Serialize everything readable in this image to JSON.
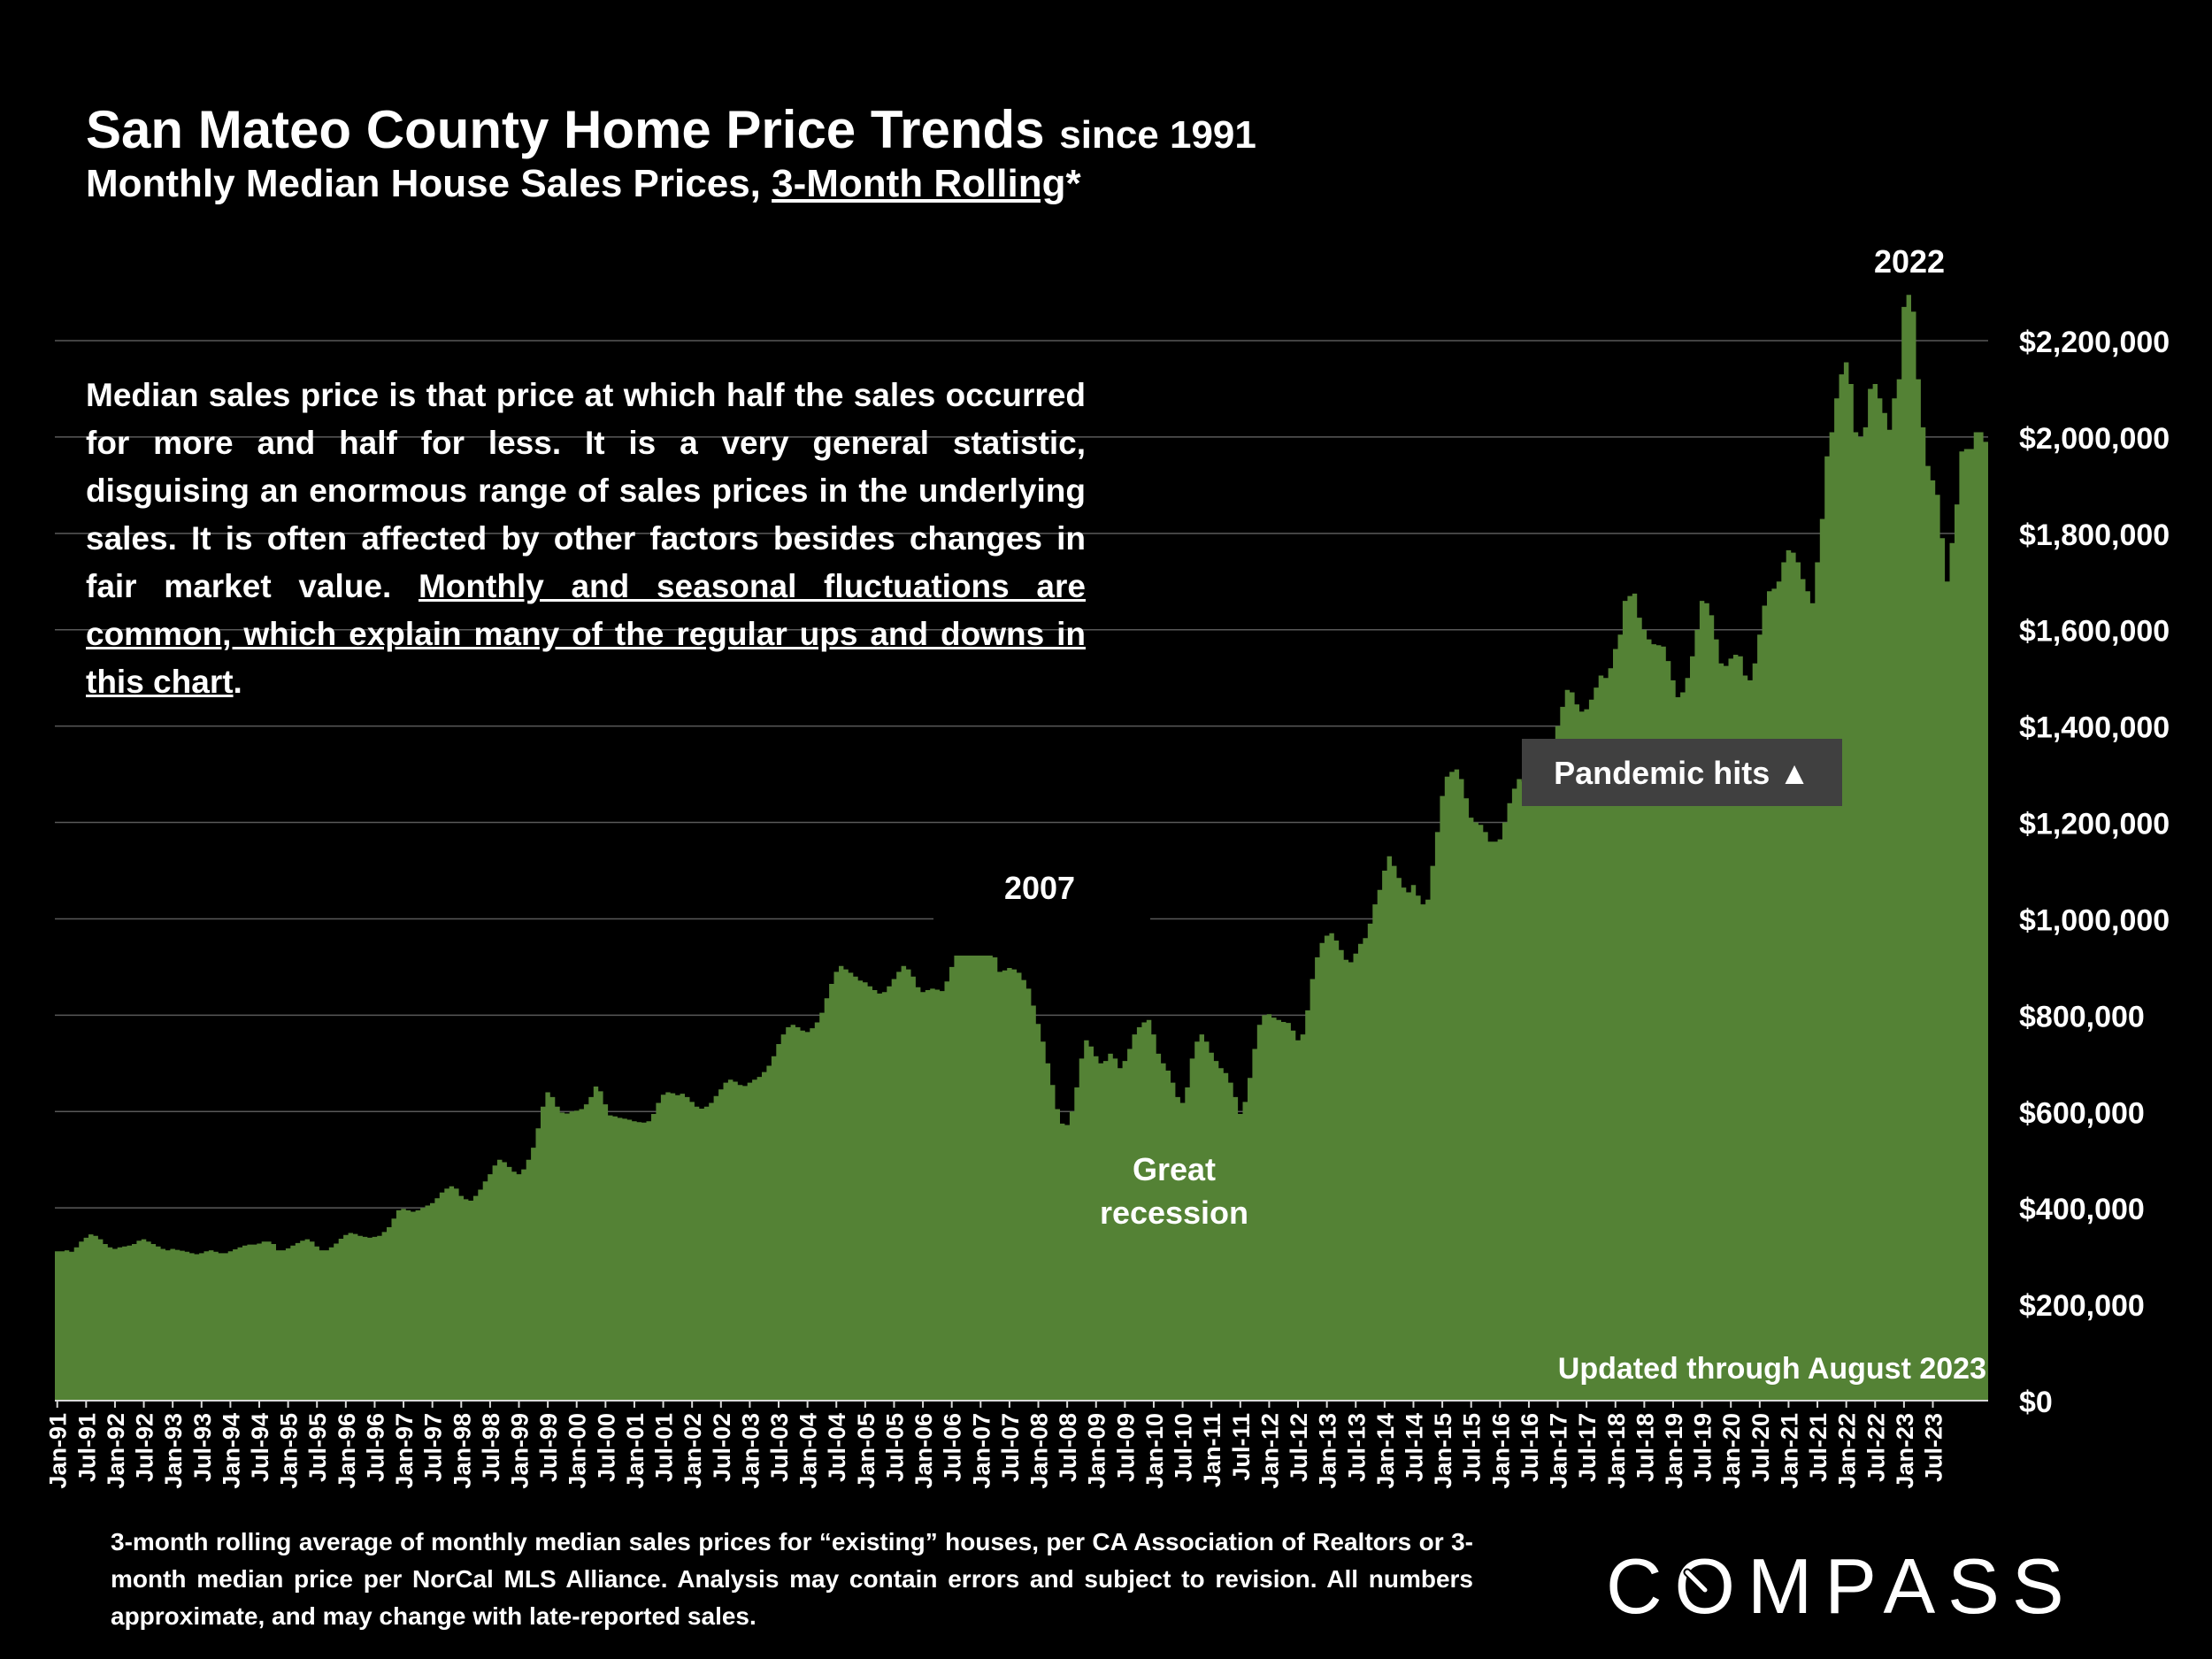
{
  "header": {
    "title": "San Mateo County Home Price Trends",
    "title_suffix": "since 1991",
    "subtitle_prefix": "Monthly Median House Sales Prices, ",
    "subtitle_link": "3-Month Rolling",
    "subtitle_suffix": "*"
  },
  "note": {
    "text_plain": "Median sales price is that price at which half the sales occurred for more and half for less. It is a very general statistic, disguising an enormous range of sales prices in the underlying sales. It is often affected by other factors besides changes in fair market value. ",
    "text_underlined": "Monthly and seasonal fluctuations are common, which explain many of the regular ups and downs in this chart",
    "text_end": "."
  },
  "footnote": "3-month rolling average of monthly median sales prices for “existing” houses, per CA Association of Realtors or 3-month median price per NorCal MLS Alliance. Analysis may contain errors and subject to revision. All numbers approximate, and may change with late-reported sales.",
  "logo": {
    "text": "COMPASS"
  },
  "colors": {
    "area": "#548235",
    "background": "#000000",
    "grid": "#595959",
    "callout_box": "#404040"
  },
  "chart_data": {
    "type": "area",
    "x_start": "Jan-91",
    "x_end": "Aug-23",
    "x_ticks": [
      "Jan-91",
      "Jul-91",
      "Jan-92",
      "Jul-92",
      "Jan-93",
      "Jul-93",
      "Jan-94",
      "Jul-94",
      "Jan-95",
      "Jul-95",
      "Jan-96",
      "Jul-96",
      "Jan-97",
      "Jul-97",
      "Jan-98",
      "Jul-98",
      "Jan-99",
      "Jul-99",
      "Jan-00",
      "Jul-00",
      "Jan-01",
      "Jul-01",
      "Jan-02",
      "Jul-02",
      "Jan-03",
      "Jul-03",
      "Jan-04",
      "Jul-04",
      "Jan-05",
      "Jul-05",
      "Jan-06",
      "Jul-06",
      "Jan-07",
      "Jul-07",
      "Jan-08",
      "Jul-08",
      "Jan-09",
      "Jul-09",
      "Jan-10",
      "Jul-10",
      "Jan-11",
      "Jul-11",
      "Jan-12",
      "Jul-12",
      "Jan-13",
      "Jul-13",
      "Jan-14",
      "Jul-14",
      "Jan-15",
      "Jul-15",
      "Jan-16",
      "Jul-16",
      "Jan-17",
      "Jul-17",
      "Jan-18",
      "Jul-18",
      "Jan-19",
      "Jul-19",
      "Jan-20",
      "Jul-20",
      "Jan-21",
      "Jul-21",
      "Jan-22",
      "Jul-22",
      "Jan-23",
      "Jul-23"
    ],
    "ylim": [
      0,
      2200000
    ],
    "y_ticks": [
      0,
      200000,
      400000,
      600000,
      800000,
      1000000,
      1200000,
      1400000,
      1600000,
      1800000,
      2000000,
      2200000
    ],
    "y_tick_labels": [
      "$0",
      "$200,000",
      "$400,000",
      "$600,000",
      "$800,000",
      "$1,000,000",
      "$1,200,000",
      "$1,400,000",
      "$1,600,000",
      "$1,800,000",
      "$2,000,000",
      "$2,200,000"
    ],
    "y_axis_side": "right",
    "grid": true,
    "series": [
      {
        "values": [
          310000,
          310000,
          312000,
          309000,
          318000,
          330000,
          338000,
          345000,
          342000,
          335000,
          325000,
          318000,
          315000,
          318000,
          320000,
          322000,
          325000,
          332000,
          335000,
          330000,
          325000,
          320000,
          315000,
          312000,
          315000,
          313000,
          311000,
          309000,
          306000,
          304000,
          306000,
          310000,
          312000,
          309000,
          306000,
          306000,
          310000,
          314000,
          318000,
          322000,
          324000,
          324000,
          326000,
          330000,
          330000,
          325000,
          312000,
          312000,
          316000,
          322000,
          327000,
          332000,
          335000,
          330000,
          320000,
          312000,
          312000,
          318000,
          326000,
          336000,
          344000,
          348000,
          346000,
          342000,
          340000,
          338000,
          340000,
          342000,
          350000,
          360000,
          378000,
          395000,
          398000,
          395000,
          392000,
          395000,
          400000,
          405000,
          410000,
          420000,
          432000,
          440000,
          445000,
          440000,
          425000,
          418000,
          415000,
          425000,
          438000,
          455000,
          470000,
          488000,
          500000,
          495000,
          485000,
          475000,
          470000,
          480000,
          500000,
          525000,
          565000,
          610000,
          640000,
          630000,
          610000,
          598000,
          596000,
          600000,
          602000,
          605000,
          615000,
          630000,
          652000,
          642000,
          615000,
          592000,
          590000,
          587000,
          585000,
          583000,
          580000,
          578000,
          577000,
          580000,
          595000,
          618000,
          635000,
          640000,
          638000,
          634000,
          637000,
          630000,
          620000,
          610000,
          606000,
          610000,
          618000,
          632000,
          646000,
          660000,
          666000,
          662000,
          655000,
          653000,
          660000,
          666000,
          672000,
          682000,
          695000,
          715000,
          740000,
          760000,
          775000,
          780000,
          775000,
          768000,
          765000,
          773000,
          785000,
          805000,
          835000,
          865000,
          890000,
          902000,
          895000,
          888000,
          880000,
          872000,
          868000,
          860000,
          852000,
          845000,
          848000,
          860000,
          875000,
          890000,
          902000,
          895000,
          880000,
          858000,
          848000,
          852000,
          855000,
          853000,
          850000,
          870000,
          900000,
          940000,
          965000,
          980000,
          983000,
          972000,
          958000,
          950000,
          942000,
          920000,
          890000,
          893000,
          898000,
          895000,
          888000,
          873000,
          855000,
          820000,
          782000,
          745000,
          700000,
          655000,
          605000,
          575000,
          572000,
          600000,
          650000,
          710000,
          748000,
          735000,
          715000,
          700000,
          705000,
          720000,
          710000,
          690000,
          705000,
          730000,
          760000,
          775000,
          785000,
          790000,
          760000,
          720000,
          700000,
          685000,
          660000,
          630000,
          618000,
          650000,
          710000,
          745000,
          760000,
          745000,
          722000,
          705000,
          690000,
          680000,
          660000,
          630000,
          595000,
          620000,
          670000,
          730000,
          780000,
          800000,
          802000,
          795000,
          790000,
          786000,
          784000,
          768000,
          748000,
          760000,
          810000,
          875000,
          920000,
          950000,
          965000,
          970000,
          955000,
          935000,
          915000,
          910000,
          928000,
          948000,
          960000,
          990000,
          1030000,
          1060000,
          1100000,
          1130000,
          1110000,
          1085000,
          1065000,
          1055000,
          1070000,
          1048000,
          1030000,
          1040000,
          1110000,
          1180000,
          1255000,
          1295000,
          1305000,
          1310000,
          1290000,
          1250000,
          1210000,
          1200000,
          1195000,
          1180000,
          1160000,
          1160000,
          1165000,
          1200000,
          1240000,
          1270000,
          1290000,
          1285000,
          1275000,
          1268000,
          1280000,
          1310000,
          1340000,
          1365000,
          1400000,
          1440000,
          1475000,
          1470000,
          1445000,
          1430000,
          1435000,
          1455000,
          1480000,
          1505000,
          1500000,
          1520000,
          1560000,
          1590000,
          1660000,
          1670000,
          1675000,
          1625000,
          1600000,
          1580000,
          1570000,
          1568000,
          1565000,
          1535000,
          1495000,
          1460000,
          1470000,
          1500000,
          1545000,
          1600000,
          1660000,
          1655000,
          1630000,
          1580000,
          1530000,
          1525000,
          1540000,
          1548000,
          1545000,
          1505000,
          1495000,
          1530000,
          1590000,
          1650000,
          1680000,
          1685000,
          1700000,
          1740000,
          1765000,
          1760000,
          1740000,
          1705000,
          1680000,
          1655000,
          1740000,
          1830000,
          1960000,
          2010000,
          2080000,
          2130000,
          2155000,
          2110000,
          2010000,
          2000000,
          2020000,
          2100000,
          2110000,
          2080000,
          2050000,
          2015000,
          2080000,
          2120000,
          2270000,
          2295000,
          2260000,
          2120000,
          2020000,
          1940000,
          1910000,
          1880000,
          1790000,
          1700000,
          1780000,
          1860000,
          1970000,
          1975000,
          1975000,
          2010000,
          2010000,
          1990000
        ]
      }
    ],
    "annotations": [
      {
        "text": "2022"
      },
      {
        "text": "2007"
      },
      {
        "text": "Great"
      },
      {
        "text": "recession"
      },
      {
        "text": "Pandemic hits ▲"
      },
      {
        "text": "Updated through August 2023"
      }
    ]
  }
}
